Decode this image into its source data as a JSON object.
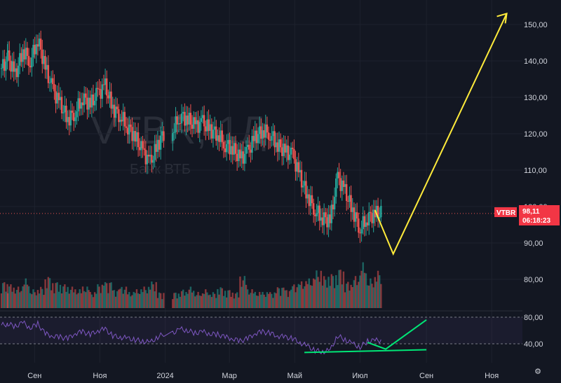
{
  "watermark": {
    "ticker": "VTBR, 1Д",
    "name": "Банк ВТБ"
  },
  "price_label": {
    "symbol": "VTBR",
    "price": "98,11",
    "countdown": "06:18:23",
    "color": "#f23645"
  },
  "rsi_axis": [
    "80,00",
    "40,00"
  ],
  "settings_icon": "settings-gear-icon",
  "colors": {
    "background": "#131722",
    "up": "#26a69a",
    "down": "#ef5350",
    "rsi_line": "#7e57c2",
    "annotation_price": "#ffeb3b",
    "annotation_rsi": "#00e676",
    "grid": "#1e222d"
  },
  "chart_data": [
    {
      "type": "candlestick",
      "symbol": "VTBR",
      "timeframe": "1Д",
      "y_axis_ticks": [
        "80,00",
        "90,00",
        "100,00",
        "110,00",
        "120,00",
        "130,00",
        "140,00",
        "150,00"
      ],
      "x_axis_ticks": [
        "Сен",
        "Ноя",
        "2024",
        "Мар",
        "Май",
        "Июл",
        "Сен",
        "Ноя"
      ],
      "ylim": [
        72,
        157
      ],
      "close_path": [
        [
          "2023-08-01",
          138
        ],
        [
          "2023-08-07",
          141
        ],
        [
          "2023-08-14",
          136
        ],
        [
          "2023-08-21",
          143
        ],
        [
          "2023-08-28",
          140
        ],
        [
          "2023-09-04",
          146
        ],
        [
          "2023-09-11",
          138
        ],
        [
          "2023-09-18",
          132
        ],
        [
          "2023-09-25",
          128
        ],
        [
          "2023-10-02",
          124
        ],
        [
          "2023-10-09",
          126
        ],
        [
          "2023-10-16",
          130
        ],
        [
          "2023-10-23",
          128
        ],
        [
          "2023-10-30",
          131
        ],
        [
          "2023-11-06",
          133
        ],
        [
          "2023-11-13",
          127
        ],
        [
          "2023-11-20",
          125
        ],
        [
          "2023-11-27",
          122
        ],
        [
          "2023-12-04",
          119
        ],
        [
          "2023-12-11",
          115
        ],
        [
          "2023-12-18",
          112
        ],
        [
          "2023-12-25",
          117
        ],
        [
          "2024-01-08",
          121
        ],
        [
          "2024-01-15",
          125
        ],
        [
          "2024-01-22",
          124
        ],
        [
          "2024-01-29",
          122
        ],
        [
          "2024-02-05",
          123
        ],
        [
          "2024-02-12",
          121
        ],
        [
          "2024-02-19",
          120
        ],
        [
          "2024-02-26",
          117
        ],
        [
          "2024-03-04",
          116
        ],
        [
          "2024-03-11",
          113
        ],
        [
          "2024-03-18",
          115
        ],
        [
          "2024-03-25",
          119
        ],
        [
          "2024-04-01",
          121
        ],
        [
          "2024-04-08",
          120
        ],
        [
          "2024-04-15",
          117
        ],
        [
          "2024-04-22",
          115
        ],
        [
          "2024-04-29",
          114
        ],
        [
          "2024-05-06",
          108
        ],
        [
          "2024-05-13",
          103
        ],
        [
          "2024-05-20",
          99
        ],
        [
          "2024-05-27",
          97
        ],
        [
          "2024-06-03",
          96
        ],
        [
          "2024-06-10",
          108
        ],
        [
          "2024-06-17",
          104
        ],
        [
          "2024-06-24",
          99
        ],
        [
          "2024-07-01",
          94
        ],
        [
          "2024-07-08",
          97
        ],
        [
          "2024-07-15",
          98
        ]
      ],
      "volume_relative": [
        0.5,
        0.45,
        0.4,
        0.55,
        0.35,
        0.4,
        0.6,
        0.5,
        0.45,
        0.4,
        0.35,
        0.4,
        0.3,
        0.45,
        0.5,
        0.35,
        0.4,
        0.3,
        0.35,
        0.4,
        0.5,
        0.3,
        0.3,
        0.35,
        0.4,
        0.3,
        0.35,
        0.3,
        0.4,
        0.35,
        0.3,
        0.6,
        0.35,
        0.3,
        0.3,
        0.3,
        0.4,
        0.35,
        0.45,
        0.5,
        0.55,
        0.7,
        0.6,
        0.65,
        0.75,
        0.5,
        0.6,
        0.85,
        0.55,
        0.7
      ],
      "annotation_projection": [
        [
          "2024-07-15",
          99
        ],
        [
          "2024-08-01",
          87
        ],
        [
          "2024-11-15",
          153
        ]
      ],
      "last_price": 98.11
    },
    {
      "type": "line",
      "name": "RSI",
      "ylim": [
        25,
        95
      ],
      "bands": [
        80,
        40
      ],
      "values": [
        68,
        70,
        66,
        72,
        64,
        70,
        55,
        52,
        50,
        48,
        56,
        58,
        54,
        60,
        62,
        52,
        50,
        48,
        46,
        44,
        42,
        50,
        56,
        62,
        60,
        56,
        58,
        55,
        54,
        50,
        48,
        44,
        48,
        56,
        58,
        56,
        52,
        50,
        48,
        42,
        36,
        30,
        28,
        30,
        52,
        46,
        40,
        35,
        44,
        45
      ],
      "annotation_projection": [
        [
          "2024-07-08",
          42
        ],
        [
          "2024-07-25",
          32
        ],
        [
          "2024-09-01",
          76
        ]
      ],
      "annotation_divergence": [
        [
          "2024-05-10",
          27
        ],
        [
          "2024-09-01",
          31
        ]
      ]
    }
  ]
}
